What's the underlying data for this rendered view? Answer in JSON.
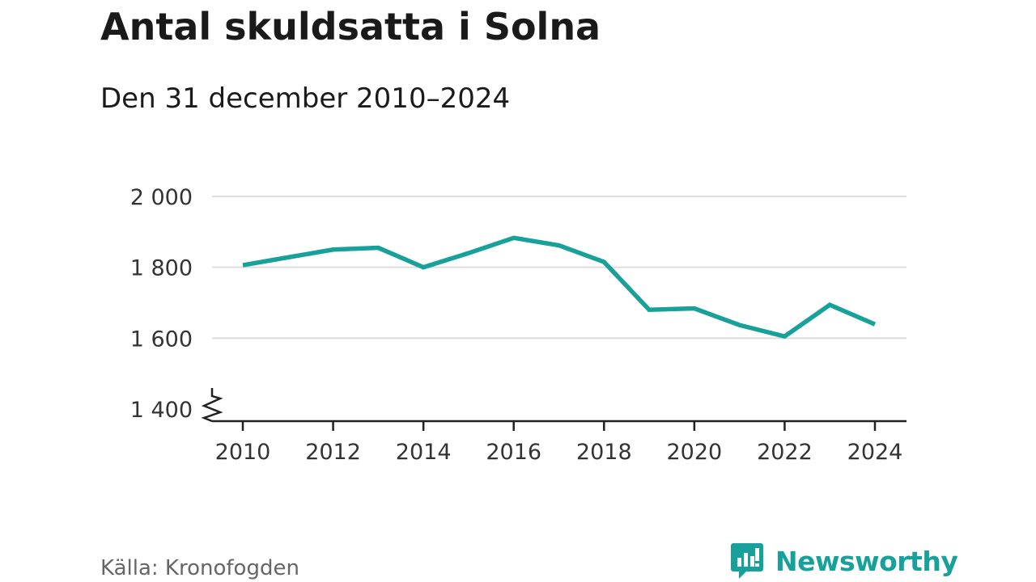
{
  "title": "Antal skuldsatta i Solna",
  "subtitle": "Den 31 december 2010–2024",
  "source": "Källa: Kronofogden",
  "brand": {
    "name": "Newsworthy",
    "icon": "newsworthy-logo-icon"
  },
  "colors": {
    "line": "#17a19a",
    "grid": "#dddddd",
    "axis": "#222222",
    "brand": "#17a19a"
  },
  "chart_data": {
    "type": "line",
    "title": "Antal skuldsatta i Solna",
    "subtitle": "Den 31 december 2010–2024",
    "xlabel": "",
    "ylabel": "",
    "x": [
      2010,
      2011,
      2012,
      2013,
      2014,
      2015,
      2016,
      2017,
      2018,
      2019,
      2020,
      2021,
      2022,
      2023,
      2024
    ],
    "series": [
      {
        "values": [
          1806,
          1828,
          1850,
          1855,
          1800,
          1840,
          1883,
          1862,
          1815,
          1680,
          1684,
          1637,
          1605,
          1694,
          1639
        ]
      }
    ],
    "xlim": [
      2010,
      2024
    ],
    "ylim": [
      1400,
      2000
    ],
    "yticks": [
      1400,
      1600,
      1800,
      2000
    ],
    "ytick_labels": [
      "1 400",
      "1 600",
      "1 800",
      "2 000"
    ],
    "xticks": [
      2010,
      2012,
      2014,
      2016,
      2018,
      2020,
      2022,
      2024
    ],
    "xtick_labels": [
      "2010",
      "2012",
      "2014",
      "2016",
      "2018",
      "2020",
      "2022",
      "2024"
    ],
    "axis_break": true,
    "grid": true
  }
}
